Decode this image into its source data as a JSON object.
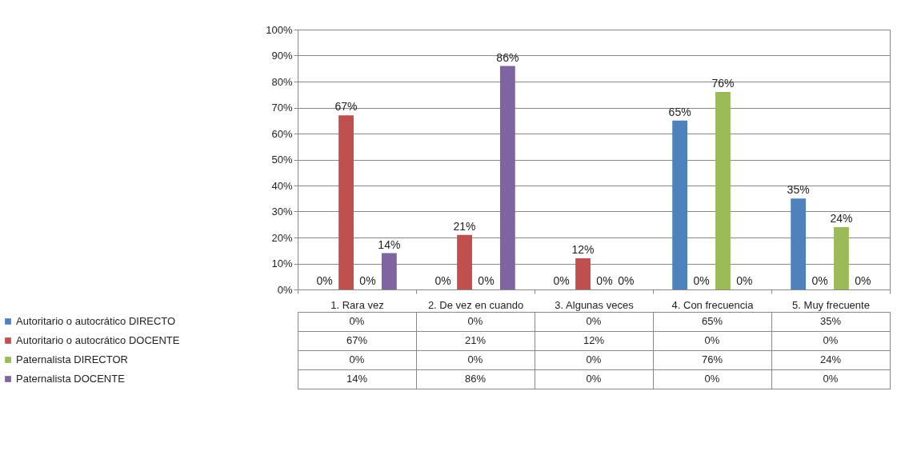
{
  "chart_data": {
    "type": "bar",
    "categories": [
      "1. Rara vez",
      "2. De vez en cuando",
      "3. Algunas veces",
      "4. Con frecuencia",
      "5. Muy frecuente"
    ],
    "series": [
      {
        "name": "Autoritario o autocrático DIRECTO",
        "color": "#4f81bd",
        "values": [
          0,
          0,
          0,
          65,
          35
        ],
        "value_labels": [
          "0%",
          "0%",
          "0%",
          "65%",
          "35%"
        ]
      },
      {
        "name": "Autoritario o autocrático DOCENTE",
        "color": "#c0504d",
        "values": [
          67,
          21,
          12,
          0,
          0
        ],
        "value_labels": [
          "67%",
          "21%",
          "12%",
          "0%",
          "0%"
        ]
      },
      {
        "name": "Paternalista DIRECTOR",
        "color": "#9bbb59",
        "values": [
          0,
          0,
          0,
          76,
          24
        ],
        "value_labels": [
          "0%",
          "0%",
          "0%",
          "76%",
          "24%"
        ]
      },
      {
        "name": "Paternalista DOCENTE",
        "color": "#8064a2",
        "values": [
          14,
          86,
          0,
          0,
          0
        ],
        "value_labels": [
          "14%",
          "86%",
          "0%",
          "0%",
          "0%"
        ]
      }
    ],
    "ylim": [
      0,
      100
    ],
    "yticks": [
      {
        "value": 0,
        "label": "0%"
      },
      {
        "value": 10,
        "label": "10%"
      },
      {
        "value": 20,
        "label": "20%"
      },
      {
        "value": 30,
        "label": "30%"
      },
      {
        "value": 40,
        "label": "40%"
      },
      {
        "value": 50,
        "label": "50%"
      },
      {
        "value": 60,
        "label": "60%"
      },
      {
        "value": 70,
        "label": "70%"
      },
      {
        "value": 80,
        "label": "80%"
      },
      {
        "value": 90,
        "label": "90%"
      },
      {
        "value": 100,
        "label": "100%"
      }
    ],
    "grid": "y",
    "legend": "bottom left"
  }
}
